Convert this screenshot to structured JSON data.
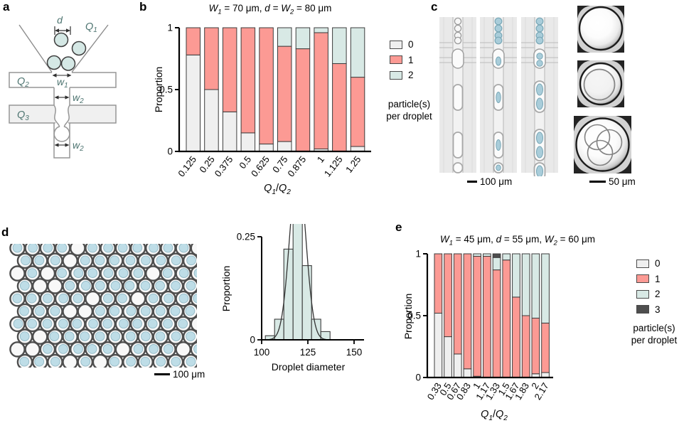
{
  "panels": {
    "a": "a",
    "b": "b",
    "c": "c",
    "d": "d",
    "e": "e"
  },
  "colors": {
    "particles_0": "#efefef",
    "particles_1": "#fc9a94",
    "particles_2": "#d8e9e5",
    "particles_3": "#4e4e4e",
    "particle_blue": "#a9cdda",
    "schematic_label_teal": "#4d7470",
    "hist_bar": "#d8e9e5"
  },
  "panel_a": {
    "labels": {
      "d": "d",
      "q1b": "Q",
      "q1s": "1",
      "q2b": "Q",
      "q2s": "2",
      "q3b": "Q",
      "q3s": "3",
      "w1b": "w",
      "w1s": "1",
      "w2b": "w",
      "w2s": "2"
    }
  },
  "panel_b": {
    "title_segments": [
      {
        "t": "W",
        "i": 1
      },
      {
        "t": "1",
        "i": 1,
        "sub": 1
      },
      {
        "t": " = 70 μm, "
      },
      {
        "t": "d",
        "i": 1
      },
      {
        "t": " = "
      },
      {
        "t": "W",
        "i": 1
      },
      {
        "t": "2",
        "i": 1,
        "sub": 1
      },
      {
        "t": " = 80 μm"
      }
    ],
    "ylabel": "Proportion",
    "xlabel_segments": [
      {
        "t": "Q",
        "i": 1
      },
      {
        "t": "1",
        "i": 1,
        "sub": 1
      },
      {
        "t": "/"
      },
      {
        "t": "Q",
        "i": 1
      },
      {
        "t": "2",
        "i": 1,
        "sub": 1
      }
    ],
    "legend_caption1": "particle(s)",
    "legend_caption2": "per droplet"
  },
  "panel_c": {
    "scalebar1": "100 μm",
    "scalebar2": "50 μm"
  },
  "panel_d": {
    "scalebar": "100 μm",
    "hist_ylabel": "Proportion",
    "hist_xlabel": "Droplet diameter"
  },
  "panel_e": {
    "title_segments": [
      {
        "t": "W",
        "i": 1
      },
      {
        "t": "1",
        "i": 1,
        "sub": 1
      },
      {
        "t": " = 45 μm, "
      },
      {
        "t": "d",
        "i": 1
      },
      {
        "t": " = 55 μm, "
      },
      {
        "t": "W",
        "i": 1
      },
      {
        "t": "2",
        "i": 1,
        "sub": 1
      },
      {
        "t": " = 60 μm"
      }
    ],
    "ylabel": "Proportion",
    "xlabel_segments": [
      {
        "t": "Q",
        "i": 1
      },
      {
        "t": "1",
        "i": 1,
        "sub": 1
      },
      {
        "t": "/"
      },
      {
        "t": "Q",
        "i": 1
      },
      {
        "t": "2",
        "i": 1,
        "sub": 1
      }
    ],
    "legend_caption1": "particle(s)",
    "legend_caption2": "per droplet"
  },
  "chart_data": [
    {
      "id": "panel_b",
      "type": "bar",
      "stacked": true,
      "title": "W1 = 70 um, d = W2 = 80 um",
      "xlabel": "Q1/Q2",
      "ylabel": "Proportion",
      "ylim": [
        0,
        1
      ],
      "yticks": [
        0,
        0.5,
        1
      ],
      "legend_title": "particle(s) per droplet",
      "legend_position": "right",
      "categories": [
        "0.125",
        "0.25",
        "0.375",
        "0.5",
        "0.625",
        "0.75",
        "0.875",
        "1",
        "1.125",
        "1.25"
      ],
      "series": [
        {
          "name": "0",
          "color": "#efefef",
          "values": [
            0.78,
            0.5,
            0.32,
            0.15,
            0.06,
            0.08,
            0.0,
            0.02,
            0.0,
            0.04
          ]
        },
        {
          "name": "1",
          "color": "#fc9a94",
          "values": [
            0.22,
            0.5,
            0.68,
            0.85,
            0.94,
            0.77,
            0.83,
            0.94,
            0.71,
            0.56
          ]
        },
        {
          "name": "2",
          "color": "#d8e9e5",
          "values": [
            0.0,
            0.0,
            0.0,
            0.0,
            0.0,
            0.15,
            0.17,
            0.04,
            0.29,
            0.4
          ]
        }
      ]
    },
    {
      "id": "panel_d_histogram",
      "type": "bar",
      "subtype": "histogram",
      "title": "",
      "xlabel": "Droplet diameter",
      "ylabel": "Proportion",
      "xlim": [
        98,
        152
      ],
      "ylim": [
        0,
        0.5
      ],
      "xticks": [
        100,
        125,
        150
      ],
      "yticks": [
        0,
        0.25,
        0.5
      ],
      "bin_edges": [
        102,
        107,
        112,
        117,
        122,
        127,
        132,
        137
      ],
      "values": [
        0.01,
        0.05,
        0.22,
        0.43,
        0.18,
        0.05,
        0.02
      ],
      "curve": {
        "type": "gaussian",
        "mean": 119.5,
        "sigma": 4.3,
        "peak": 0.42
      },
      "bar_color": "#d8e9e5"
    },
    {
      "id": "panel_e",
      "type": "bar",
      "stacked": true,
      "title": "W1 = 45 um, d = 55 um, W2 = 60 um",
      "xlabel": "Q1/Q2",
      "ylabel": "Proportion",
      "ylim": [
        0,
        1
      ],
      "yticks": [
        0,
        0.5,
        1
      ],
      "legend_title": "particle(s) per droplet",
      "legend_position": "right",
      "categories": [
        "0.33",
        "0.5",
        "0.67",
        "0.83",
        "1",
        "1.17",
        "1.33",
        "1.5",
        "1.67",
        "1.83",
        "2",
        "2.17"
      ],
      "series": [
        {
          "name": "0",
          "color": "#efefef",
          "values": [
            0.52,
            0.33,
            0.19,
            0.07,
            0.01,
            0.0,
            0.0,
            0.0,
            0.0,
            0.0,
            0.03,
            0.04
          ]
        },
        {
          "name": "1",
          "color": "#fc9a94",
          "values": [
            0.48,
            0.67,
            0.81,
            0.93,
            0.97,
            0.98,
            0.87,
            0.95,
            0.65,
            0.5,
            0.45,
            0.4
          ]
        },
        {
          "name": "2",
          "color": "#d8e9e5",
          "values": [
            0.0,
            0.0,
            0.0,
            0.0,
            0.02,
            0.02,
            0.1,
            0.05,
            0.35,
            0.5,
            0.52,
            0.56
          ]
        },
        {
          "name": "3",
          "color": "#4e4e4e",
          "values": [
            0.0,
            0.0,
            0.0,
            0.0,
            0.0,
            0.0,
            0.03,
            0.0,
            0.0,
            0.0,
            0.0,
            0.0
          ]
        }
      ]
    }
  ]
}
